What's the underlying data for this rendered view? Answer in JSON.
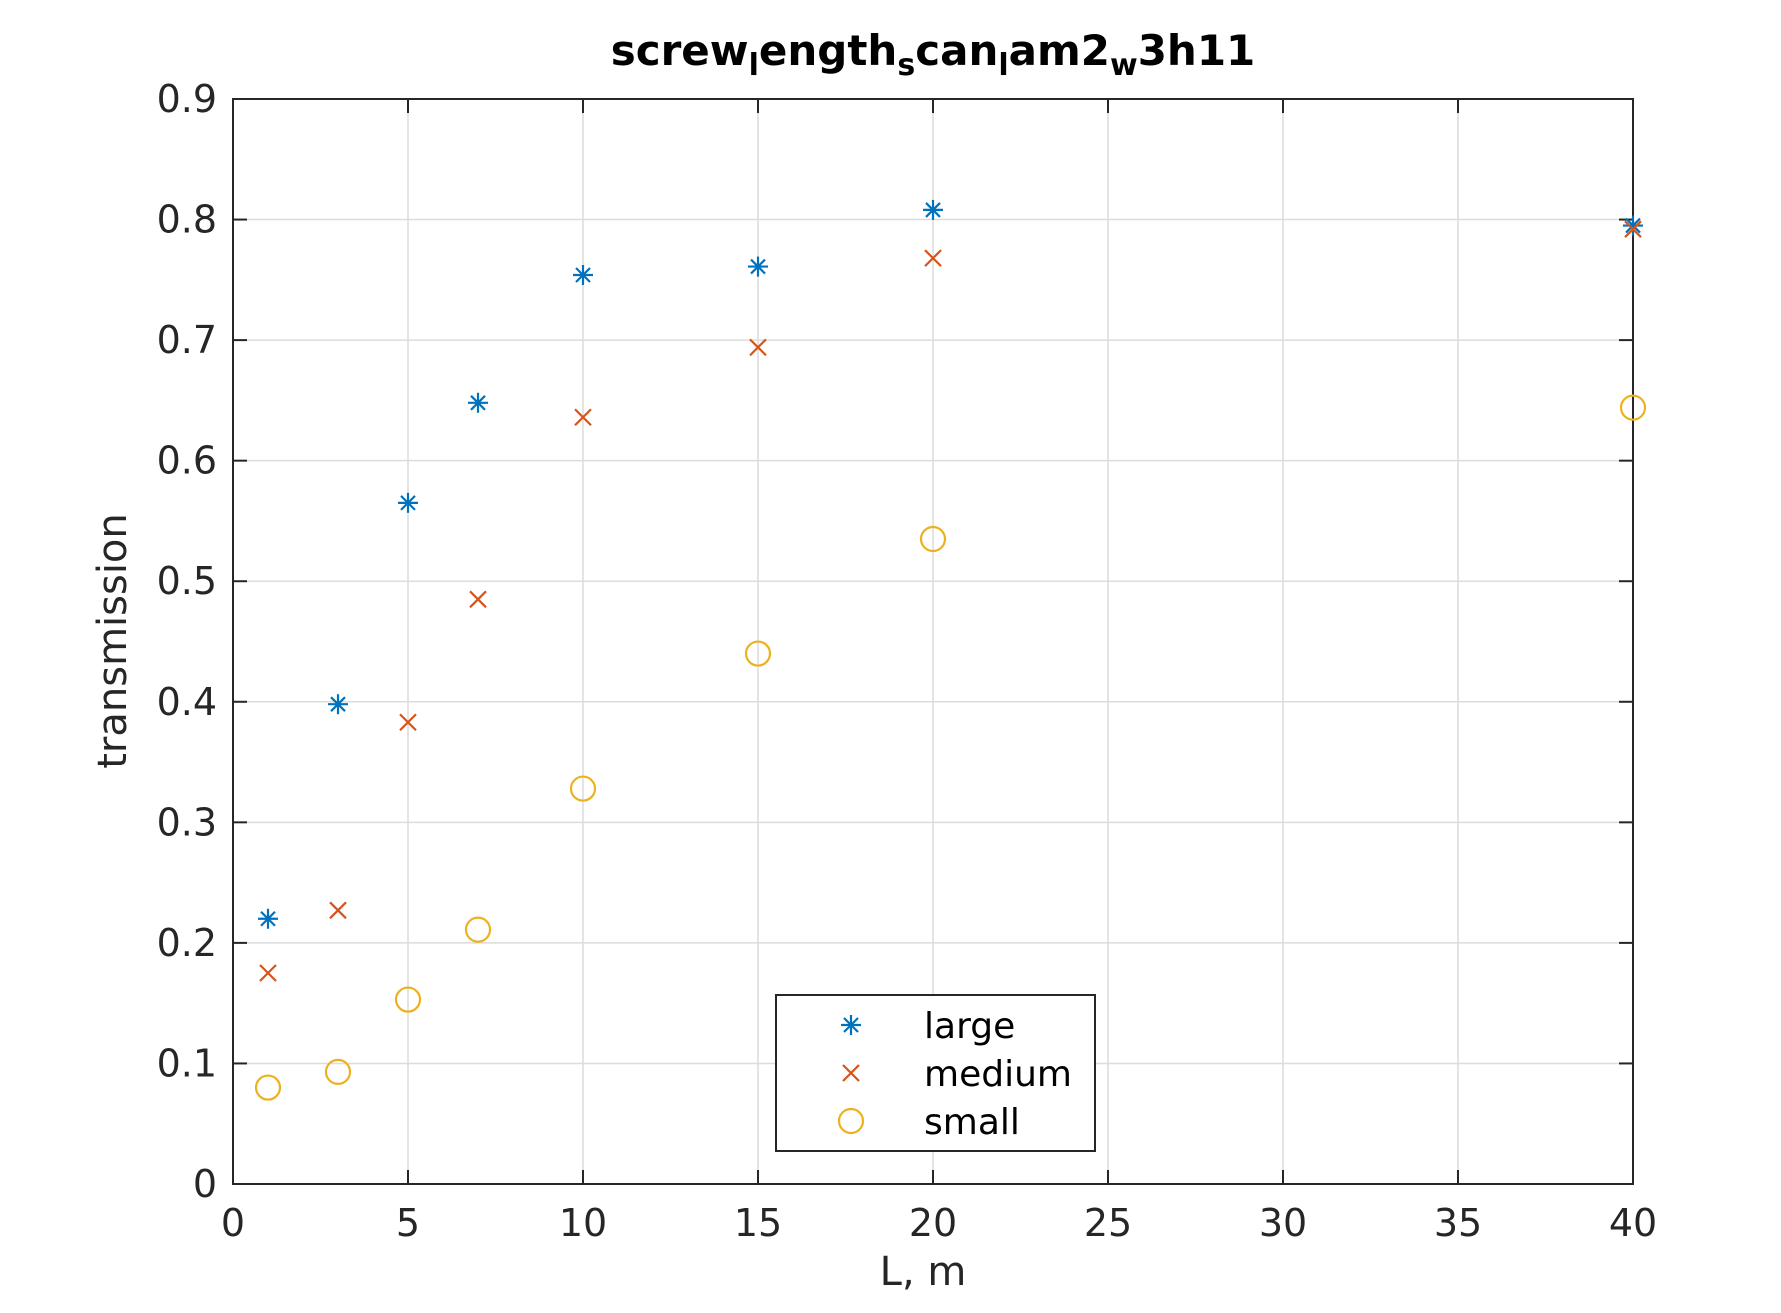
{
  "chart_data": {
    "type": "scatter",
    "title_parts": [
      {
        "text": "screw",
        "sub": false
      },
      {
        "text": "l",
        "sub": true
      },
      {
        "text": "ength",
        "sub": false
      },
      {
        "text": "s",
        "sub": true
      },
      {
        "text": "can",
        "sub": false
      },
      {
        "text": "l",
        "sub": true
      },
      {
        "text": "am2",
        "sub": false
      },
      {
        "text": "w",
        "sub": true
      },
      {
        "text": "3h11",
        "sub": false
      }
    ],
    "xlabel": "L, m",
    "ylabel": "transmission",
    "xlim": [
      0,
      40
    ],
    "ylim": [
      0,
      0.9
    ],
    "xticks": [
      0,
      5,
      10,
      15,
      20,
      25,
      30,
      35,
      40
    ],
    "xtick_labels": [
      "0",
      "5",
      "10",
      "15",
      "20",
      "25",
      "30",
      "35",
      "40"
    ],
    "yticks": [
      0,
      0.1,
      0.2,
      0.3,
      0.4,
      0.5,
      0.6,
      0.7,
      0.8,
      0.9
    ],
    "ytick_labels": [
      "0",
      "0.1",
      "0.2",
      "0.3",
      "0.4",
      "0.5",
      "0.6",
      "0.7",
      "0.8",
      "0.9"
    ],
    "grid": true,
    "legend_position": "bottom-center",
    "x": [
      1,
      3,
      5,
      7,
      10,
      15,
      20,
      40
    ],
    "series": [
      {
        "name": "large",
        "marker": "asterisk",
        "color": "#0072BD",
        "values": [
          0.22,
          0.398,
          0.565,
          0.648,
          0.754,
          0.761,
          0.808,
          0.795
        ]
      },
      {
        "name": "medium",
        "marker": "x",
        "color": "#D95319",
        "values": [
          0.175,
          0.227,
          0.383,
          0.485,
          0.636,
          0.694,
          0.768,
          0.792
        ]
      },
      {
        "name": "small",
        "marker": "circle",
        "color": "#EDB120",
        "values": [
          0.08,
          0.093,
          0.153,
          0.211,
          0.328,
          0.44,
          0.535,
          0.644
        ]
      }
    ]
  }
}
